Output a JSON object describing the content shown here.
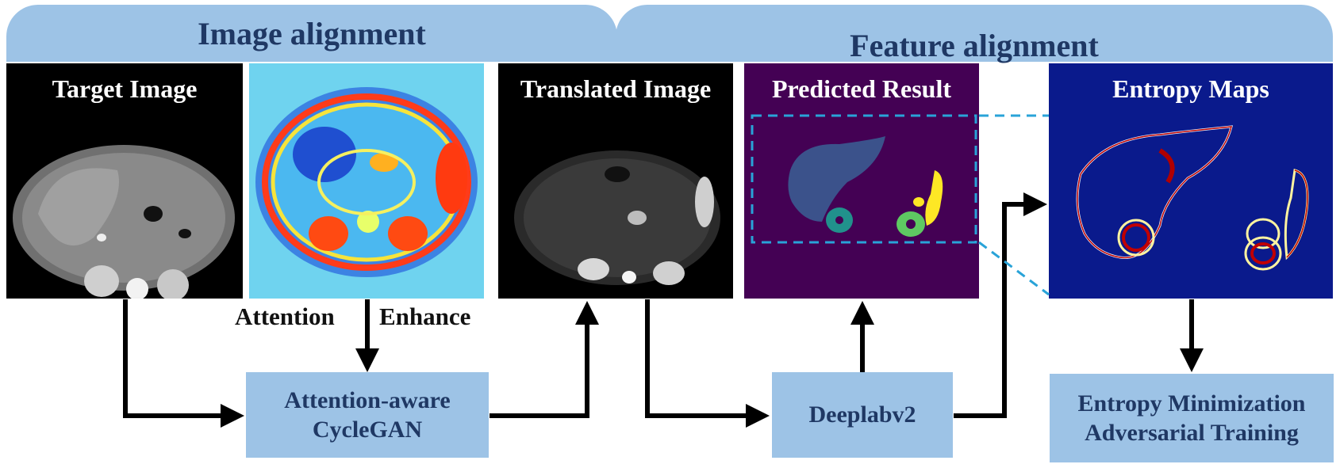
{
  "banners": {
    "image_alignment": "Image alignment",
    "feature_alignment": "Feature alignment"
  },
  "panels": {
    "target": "Target Image",
    "translated": "Translated Image",
    "predicted": "Predicted Result",
    "entropy": "Entropy Maps"
  },
  "labels": {
    "attention": "Attention",
    "enhance": "Enhance"
  },
  "boxes": {
    "cyclegan_line1": "Attention-aware",
    "cyclegan_line2": "CycleGAN",
    "deeplab": "Deeplabv2",
    "entropy_line1": "Entropy Minimization",
    "entropy_line2": "Adversarial Training"
  },
  "colors": {
    "banner": "#9dc3e6",
    "banner_text": "#1f3864",
    "predicted_bg": "#440154",
    "entropy_bg": "#0a1a8c",
    "dashed": "#29a3d8"
  }
}
